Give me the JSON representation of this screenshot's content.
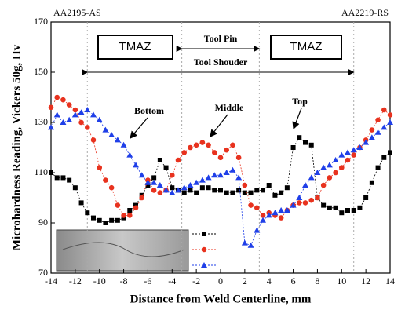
{
  "chart_data": {
    "type": "scatter",
    "x_label": "Distance from Weld Centerline, mm",
    "y_label": "Microhardness Reading, Vickers 50g, Hv",
    "left_label": "AA2195-AS",
    "right_label": "AA2219-RS",
    "annotations": {
      "bottom": "Bottom",
      "middle": "Middle",
      "top": "Top",
      "tmaz_left": "TMAZ",
      "tmaz_right": "TMAZ",
      "tool_pin": "Tool Pin",
      "tool_shoulder": "Tool Shouder"
    },
    "xlim": [
      -14,
      14
    ],
    "ylim": [
      70,
      170
    ],
    "xticks": [
      -14,
      -12,
      -10,
      -8,
      -6,
      -4,
      -2,
      0,
      2,
      4,
      6,
      8,
      10,
      12,
      14
    ],
    "yticks": [
      70,
      90,
      110,
      130,
      150,
      170
    ],
    "vlines": [
      -11,
      -3.2,
      3.2,
      11
    ],
    "x": [
      -14,
      -13.5,
      -13,
      -12.5,
      -12,
      -11.5,
      -11,
      -10.5,
      -10,
      -9.5,
      -9,
      -8.5,
      -8,
      -7.5,
      -7,
      -6.5,
      -6,
      -5.5,
      -5,
      -4.5,
      -4,
      -3.5,
      -3,
      -2.5,
      -2,
      -1.5,
      -1,
      -0.5,
      0,
      0.5,
      1,
      1.5,
      2,
      2.5,
      3,
      3.5,
      4,
      4.5,
      5,
      5.5,
      6,
      6.5,
      7,
      7.5,
      8,
      8.5,
      9,
      9.5,
      10,
      10.5,
      11,
      11.5,
      12,
      12.5,
      13,
      13.5,
      14
    ],
    "series": [
      {
        "color": "#000000",
        "marker": "square",
        "values": [
          110,
          108,
          108,
          107,
          104,
          98,
          94,
          92,
          91,
          90,
          91,
          91,
          92,
          95,
          97,
          101,
          105,
          108,
          115,
          112,
          104,
          103,
          102,
          103,
          102,
          104,
          104,
          103,
          103,
          102,
          102,
          103,
          102,
          102,
          103,
          103,
          105,
          101,
          102,
          104,
          120,
          124,
          122,
          121,
          100,
          97,
          96,
          96,
          94,
          95,
          95,
          96,
          100,
          106,
          112,
          116,
          118
        ]
      },
      {
        "color": "#e8321e",
        "marker": "circle",
        "values": [
          136,
          140,
          139,
          137,
          135,
          130,
          128,
          123,
          112,
          107,
          104,
          97,
          93,
          93,
          96,
          100,
          107,
          103,
          102,
          103,
          109,
          115,
          118,
          120,
          121,
          122,
          121,
          118,
          116,
          119,
          121,
          116,
          105,
          97,
          96,
          93,
          94,
          93,
          92,
          95,
          97,
          98,
          98,
          99,
          100,
          105,
          108,
          110,
          112,
          115,
          117,
          120,
          123,
          127,
          131,
          135,
          133
        ]
      },
      {
        "color": "#1f3fe8",
        "marker": "triangle",
        "values": [
          128,
          133,
          130,
          131,
          133,
          134,
          135,
          133,
          131,
          127,
          125,
          123,
          121,
          117,
          113,
          109,
          106,
          106,
          105,
          103,
          102,
          103,
          104,
          105,
          106,
          107,
          108,
          109,
          109,
          110,
          111,
          108,
          82,
          81,
          87,
          91,
          93,
          94,
          95,
          95,
          97,
          100,
          105,
          108,
          110,
          112,
          113,
          115,
          117,
          118,
          119,
          120,
          122,
          124,
          126,
          128,
          130
        ]
      }
    ]
  }
}
